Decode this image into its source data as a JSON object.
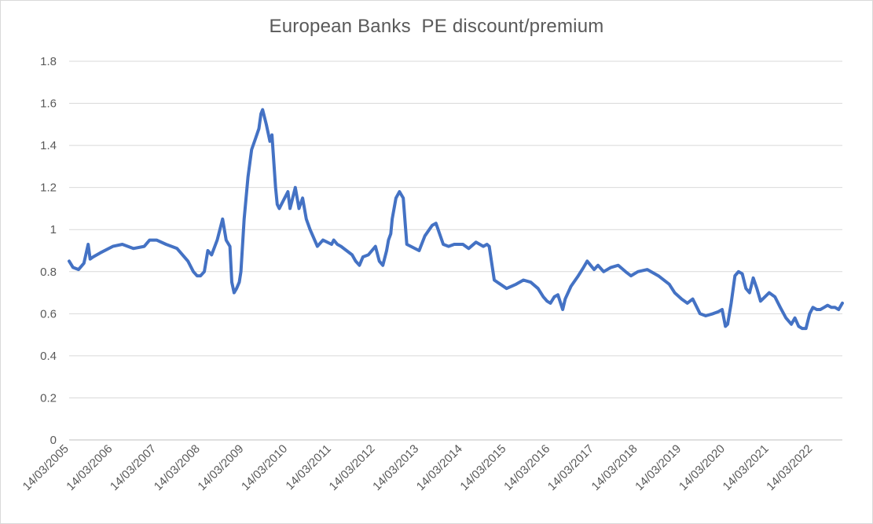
{
  "chart_data": {
    "type": "line",
    "title": "European Banks  PE discount/premium",
    "xlabel": "",
    "ylabel": "",
    "ylim": [
      0,
      1.8
    ],
    "yticks": [
      "0",
      "0.2",
      "0.4",
      "0.6",
      "0.8",
      "1",
      "1.2",
      "1.4",
      "1.6",
      "1.8"
    ],
    "xlim": [
      "2005-03-14",
      "2022-11-15"
    ],
    "xticks": [
      "14/03/2005",
      "14/03/2006",
      "14/03/2007",
      "14/03/2008",
      "14/03/2009",
      "14/03/2010",
      "14/03/2011",
      "14/03/2012",
      "14/03/2013",
      "14/03/2014",
      "14/03/2015",
      "14/03/2016",
      "14/03/2017",
      "14/03/2018",
      "14/03/2019",
      "14/03/2020",
      "14/03/2021",
      "14/03/2022"
    ],
    "grid": true,
    "legend": "none",
    "line_color": "#4472c4",
    "series": [
      {
        "x": [
          "2005-03-14",
          "2005-04-15",
          "2005-06-01",
          "2005-07-15",
          "2005-08-20",
          "2005-09-05",
          "2005-10-01",
          "2005-12-01",
          "2006-03-14",
          "2006-06-01",
          "2006-09-01",
          "2006-12-01",
          "2007-01-15",
          "2007-03-14",
          "2007-06-01",
          "2007-09-01",
          "2007-12-01",
          "2008-01-15",
          "2008-02-15",
          "2008-03-14",
          "2008-04-15",
          "2008-05-15",
          "2008-06-15",
          "2008-08-01",
          "2008-09-15",
          "2008-10-15",
          "2008-11-15",
          "2008-12-01",
          "2008-12-20",
          "2009-01-10",
          "2009-02-01",
          "2009-02-15",
          "2009-03-14",
          "2009-04-15",
          "2009-05-15",
          "2009-06-15",
          "2009-07-15",
          "2009-08-01",
          "2009-08-15",
          "2009-09-15",
          "2009-10-15",
          "2009-11-01",
          "2009-12-01",
          "2009-12-15",
          "2010-01-01",
          "2010-03-14",
          "2010-04-01",
          "2010-05-15",
          "2010-06-15",
          "2010-07-15",
          "2010-08-15",
          "2010-09-15",
          "2010-11-15",
          "2011-01-01",
          "2011-03-14",
          "2011-04-01",
          "2011-05-01",
          "2011-06-01",
          "2011-09-01",
          "2011-10-01",
          "2011-11-01",
          "2011-12-01",
          "2012-01-15",
          "2012-03-14",
          "2012-04-15",
          "2012-05-15",
          "2012-06-15",
          "2012-07-01",
          "2012-07-20",
          "2012-08-01",
          "2012-09-01",
          "2012-10-01",
          "2012-11-01",
          "2012-12-01",
          "2013-03-14",
          "2013-05-01",
          "2013-07-01",
          "2013-08-01",
          "2013-10-01",
          "2013-11-15",
          "2014-01-01",
          "2014-03-14",
          "2014-05-01",
          "2014-07-01",
          "2014-09-01",
          "2014-10-01",
          "2014-10-20",
          "2014-12-01",
          "2015-03-14",
          "2015-06-01",
          "2015-08-01",
          "2015-10-01",
          "2015-12-01",
          "2016-01-15",
          "2016-02-15",
          "2016-03-14",
          "2016-04-15",
          "2016-05-15",
          "2016-06-24",
          "2016-07-15",
          "2016-09-01",
          "2016-11-01",
          "2016-12-15",
          "2017-01-15",
          "2017-03-14",
          "2017-04-15",
          "2017-06-01",
          "2017-08-01",
          "2017-10-01",
          "2017-12-01",
          "2018-01-15",
          "2018-03-14",
          "2018-06-01",
          "2018-09-01",
          "2018-12-01",
          "2019-01-15",
          "2019-03-14",
          "2019-05-01",
          "2019-06-15",
          "2019-08-15",
          "2019-10-01",
          "2019-12-01",
          "2020-01-15",
          "2020-02-15",
          "2020-03-14",
          "2020-04-01",
          "2020-05-01",
          "2020-06-01",
          "2020-07-01",
          "2020-08-01",
          "2020-09-01",
          "2020-10-01",
          "2020-11-01",
          "2020-12-01",
          "2021-01-01",
          "2021-03-14",
          "2021-05-01",
          "2021-06-15",
          "2021-08-01",
          "2021-09-15",
          "2021-10-15",
          "2021-11-15",
          "2021-12-15",
          "2022-01-15",
          "2022-02-15",
          "2022-03-14",
          "2022-04-15",
          "2022-05-15",
          "2022-06-15",
          "2022-07-15",
          "2022-08-15",
          "2022-09-15",
          "2022-10-15",
          "2022-11-15"
        ],
        "y": [
          0.85,
          0.82,
          0.81,
          0.84,
          0.93,
          0.86,
          0.87,
          0.89,
          0.92,
          0.93,
          0.91,
          0.92,
          0.95,
          0.95,
          0.93,
          0.91,
          0.85,
          0.8,
          0.78,
          0.78,
          0.8,
          0.9,
          0.88,
          0.95,
          1.05,
          0.95,
          0.92,
          0.75,
          0.7,
          0.72,
          0.75,
          0.8,
          1.05,
          1.25,
          1.38,
          1.43,
          1.48,
          1.55,
          1.57,
          1.5,
          1.42,
          1.45,
          1.2,
          1.12,
          1.1,
          1.18,
          1.1,
          1.2,
          1.1,
          1.15,
          1.05,
          1.0,
          0.92,
          0.95,
          0.93,
          0.95,
          0.93,
          0.92,
          0.88,
          0.85,
          0.83,
          0.87,
          0.88,
          0.92,
          0.85,
          0.83,
          0.9,
          0.95,
          0.98,
          1.05,
          1.15,
          1.18,
          1.15,
          0.93,
          0.9,
          0.97,
          1.02,
          1.03,
          0.93,
          0.92,
          0.93,
          0.93,
          0.91,
          0.94,
          0.92,
          0.93,
          0.92,
          0.76,
          0.72,
          0.74,
          0.76,
          0.75,
          0.72,
          0.68,
          0.66,
          0.65,
          0.68,
          0.69,
          0.62,
          0.67,
          0.73,
          0.78,
          0.82,
          0.85,
          0.81,
          0.83,
          0.8,
          0.82,
          0.83,
          0.8,
          0.78,
          0.8,
          0.81,
          0.78,
          0.74,
          0.7,
          0.67,
          0.65,
          0.67,
          0.6,
          0.59,
          0.6,
          0.61,
          0.62,
          0.54,
          0.55,
          0.65,
          0.78,
          0.8,
          0.79,
          0.72,
          0.7,
          0.77,
          0.72,
          0.66,
          0.7,
          0.68,
          0.63,
          0.58,
          0.55,
          0.58,
          0.54,
          0.53,
          0.53,
          0.6,
          0.63,
          0.62,
          0.62,
          0.63,
          0.64,
          0.63,
          0.63,
          0.62,
          0.65
        ]
      }
    ]
  }
}
